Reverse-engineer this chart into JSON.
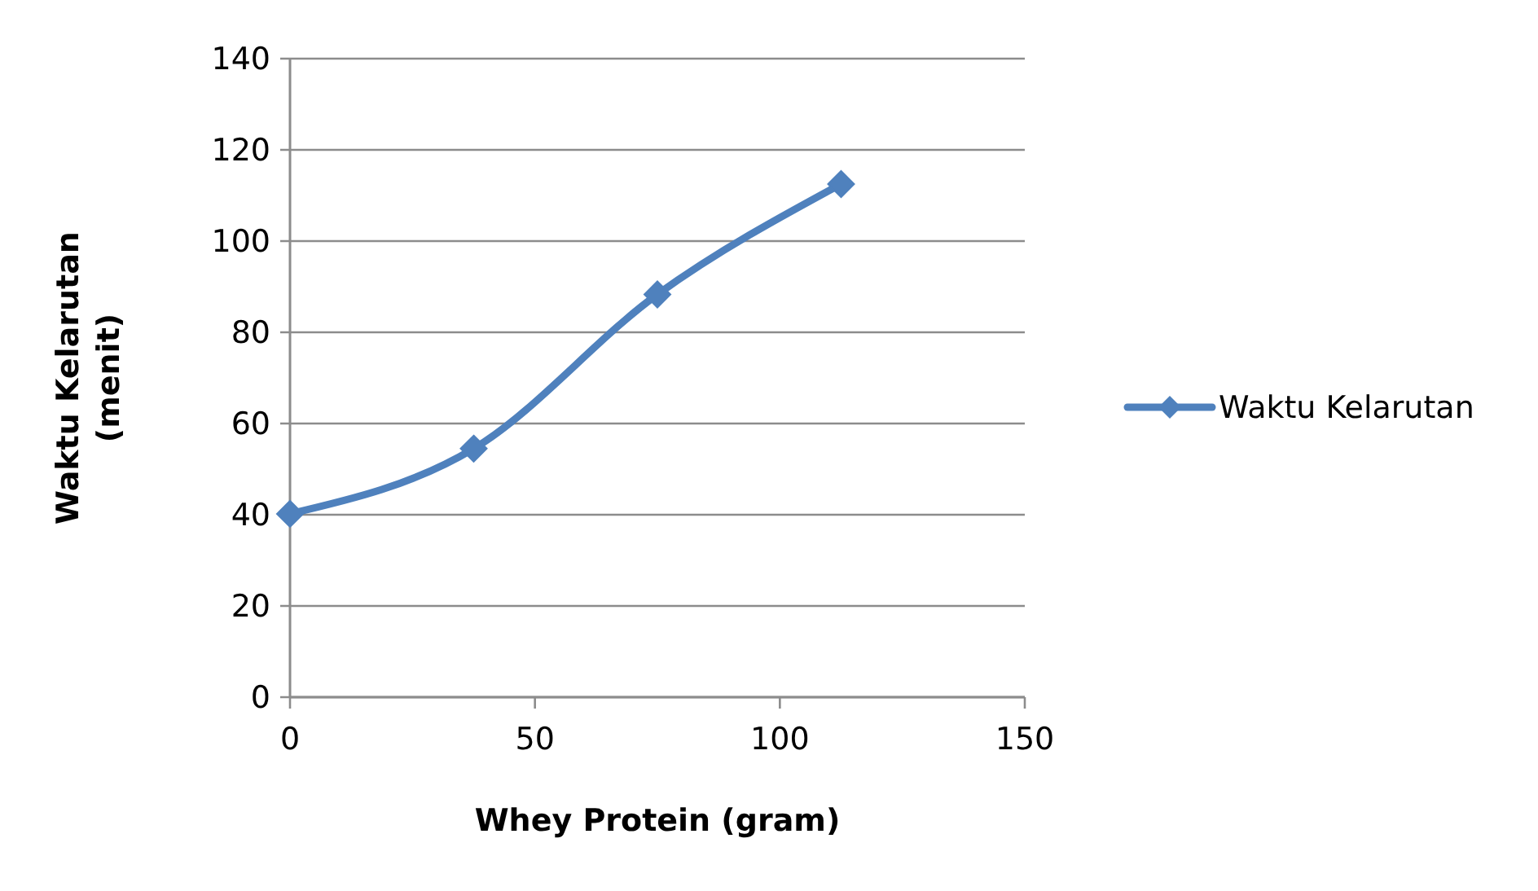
{
  "chart_data": {
    "type": "line",
    "xlabel": "Whey Protein (gram)",
    "ylabel": "Waktu Kelarutan (menit)",
    "x": [
      0,
      37.5,
      75,
      112.5
    ],
    "series": [
      {
        "name": "Waktu Kelarutan",
        "color": "#4f81bd",
        "values": [
          40.2,
          54.5,
          88.3,
          112.5
        ]
      }
    ],
    "xlim": [
      0,
      150
    ],
    "xticks": [
      0,
      50,
      100,
      150
    ],
    "ylim": [
      0,
      140
    ],
    "yticks": [
      0,
      20,
      40,
      60,
      80,
      100,
      120,
      140
    ],
    "grid": "y",
    "legend": "right",
    "marker": "diamond",
    "line_style": "solid"
  }
}
